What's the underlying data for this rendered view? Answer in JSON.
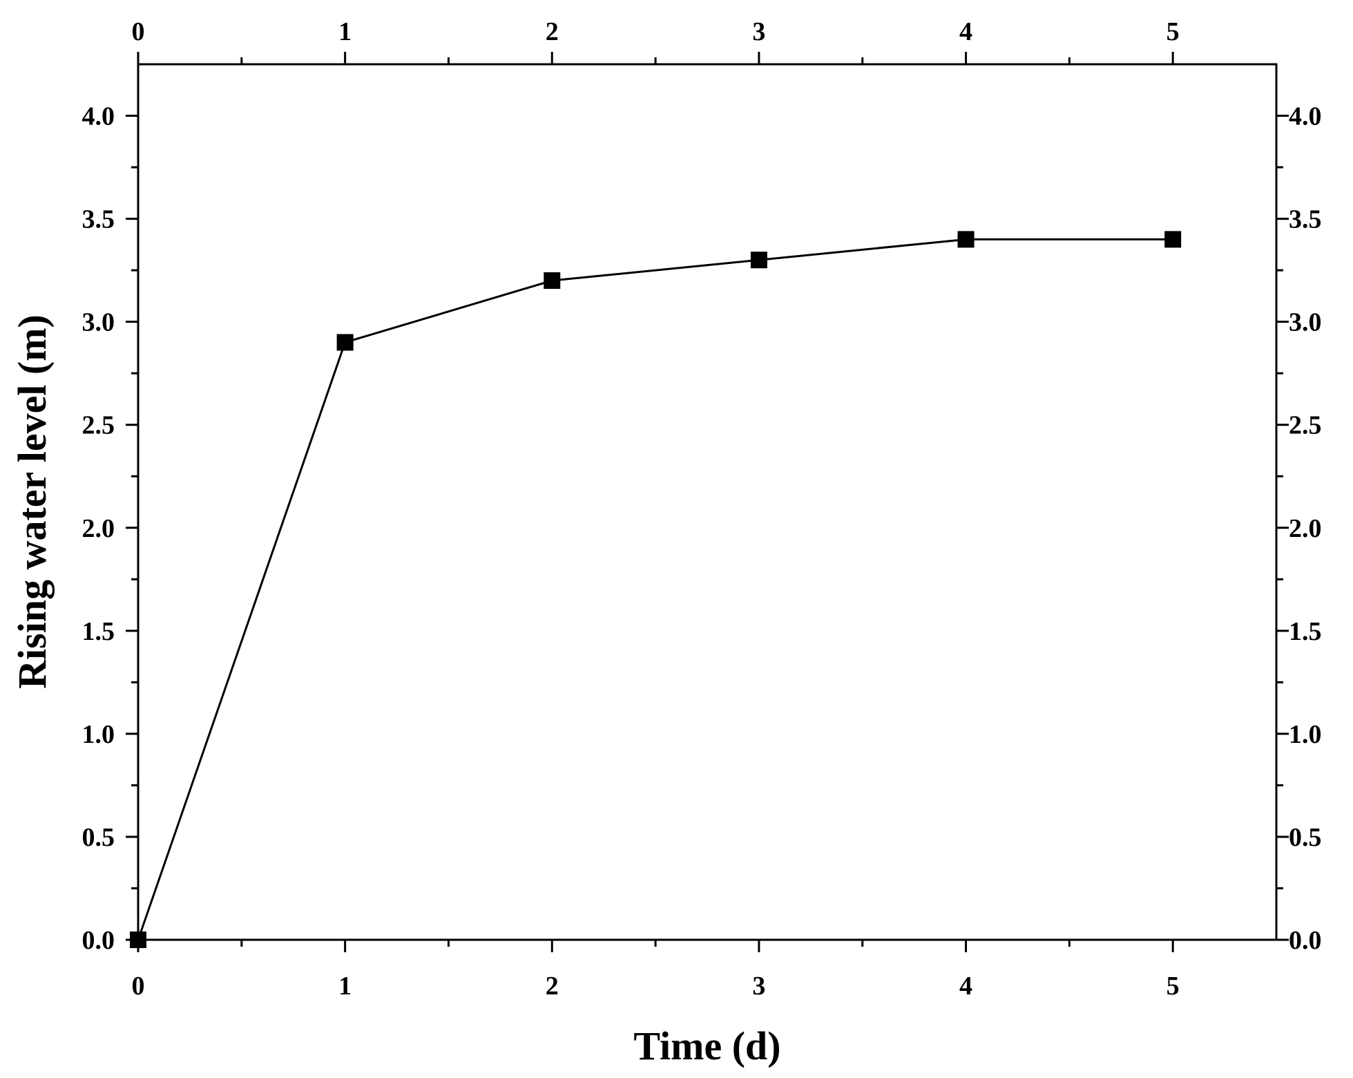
{
  "chart_data": {
    "type": "line",
    "xlabel": "Time (d)",
    "ylabel": "Rising water level (m)",
    "xlim": [
      0,
      5.5
    ],
    "ylim": [
      0,
      4.25
    ],
    "x_ticks": [
      "0",
      "1",
      "2",
      "3",
      "4",
      "5"
    ],
    "y_ticks": [
      "0.0",
      "0.5",
      "1.0",
      "1.5",
      "2.0",
      "2.5",
      "3.0",
      "3.5",
      "4.0"
    ],
    "series": [
      {
        "x": [
          0,
          1,
          2,
          3,
          4,
          5
        ],
        "values": [
          0.0,
          2.9,
          3.2,
          3.3,
          3.4,
          3.4
        ],
        "marker": "square",
        "color": "#000000"
      }
    ],
    "grid": false,
    "mirrored_axes": true
  }
}
